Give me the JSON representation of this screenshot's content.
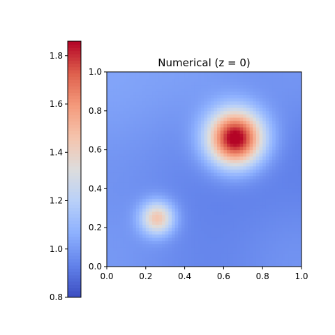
{
  "chart_data": {
    "type": "heatmap",
    "title": "Numerical (z = 0)",
    "xlabel": "",
    "ylabel": "",
    "xlim": [
      0.0,
      1.0
    ],
    "ylim": [
      0.0,
      1.0
    ],
    "x_ticks": [
      "0.0",
      "0.2",
      "0.4",
      "0.6",
      "0.8",
      "1.0"
    ],
    "y_ticks": [
      "0.0",
      "0.2",
      "0.4",
      "0.6",
      "0.8",
      "1.0"
    ],
    "colorbar": {
      "colormap": "coolwarm",
      "range": [
        0.8,
        1.86
      ],
      "ticks": [
        "0.8",
        "1.0",
        "1.2",
        "1.4",
        "1.6",
        "1.8"
      ],
      "placement": "left"
    },
    "grid": false,
    "grid_resolution": 60,
    "field": {
      "background_value": 0.9,
      "background_variation": [
        {
          "center": [
            0.0,
            1.0
          ],
          "radius": 0.55,
          "amplitude": 0.13
        },
        {
          "center": [
            1.0,
            1.0
          ],
          "radius": 0.35,
          "amplitude": 0.08
        },
        {
          "center": [
            0.0,
            0.0
          ],
          "radius": 0.45,
          "amplitude": 0.09
        },
        {
          "center": [
            1.0,
            0.0
          ],
          "radius": 0.4,
          "amplitude": 0.08
        },
        {
          "center": [
            0.5,
            1.0
          ],
          "radius": 0.25,
          "amplitude": 0.04
        }
      ],
      "peaks": [
        {
          "center": [
            0.66,
            0.66
          ],
          "peak_value": 1.86,
          "radius": 0.1
        },
        {
          "center": [
            0.26,
            0.25
          ],
          "peak_value": 1.39,
          "radius": 0.06
        }
      ]
    }
  }
}
